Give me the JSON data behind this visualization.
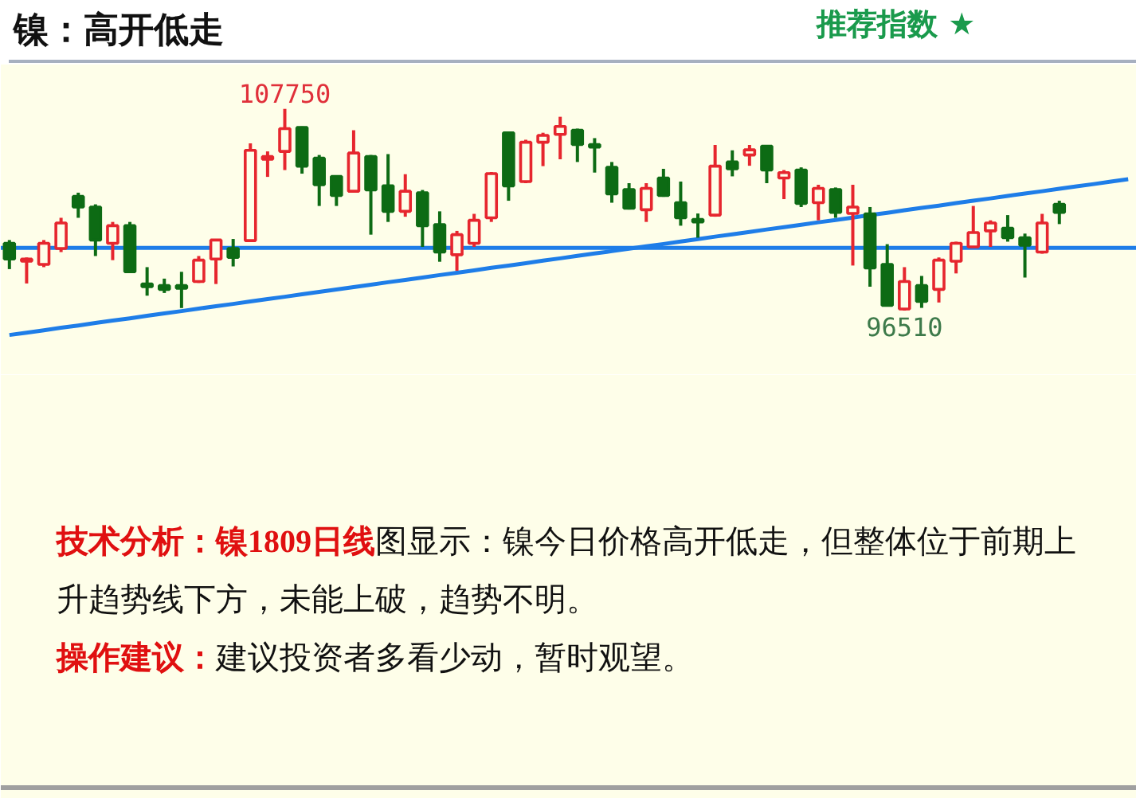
{
  "chart_data": {
    "type": "candlestick",
    "title": "镍：高开低走",
    "subtitle": "推荐指数 ★",
    "categories": [
      null,
      null,
      null,
      null,
      null,
      null,
      null,
      null,
      null,
      null,
      null,
      null,
      null,
      null,
      null,
      null,
      null,
      null,
      null,
      null,
      null,
      null,
      null,
      null,
      null,
      null,
      null,
      null,
      null,
      null,
      null,
      null,
      null,
      null,
      null,
      null,
      null,
      null,
      null,
      null,
      null,
      null,
      null,
      null,
      null,
      null,
      null,
      null,
      null,
      null,
      null,
      null,
      null,
      null,
      null,
      null,
      null,
      null,
      null,
      null,
      null,
      null,
      null,
      null,
      null,
      null
    ],
    "ohlc": [
      [
        100260,
        100440,
        98820,
        99380
      ],
      [
        99260,
        99470,
        98020,
        99380
      ],
      [
        99080,
        100440,
        98930,
        100260
      ],
      [
        99970,
        101680,
        99770,
        101390
      ],
      [
        102870,
        103080,
        101680,
        102280
      ],
      [
        102280,
        102430,
        99550,
        100440
      ],
      [
        100260,
        101450,
        99320,
        101240
      ],
      [
        101240,
        101450,
        98600,
        98670
      ],
      [
        97990,
        98930,
        97340,
        97840
      ],
      [
        97900,
        98290,
        97490,
        97690
      ],
      [
        97900,
        98670,
        96650,
        97750
      ],
      [
        98130,
        99550,
        98050,
        99320
      ],
      [
        99380,
        100500,
        97990,
        100440
      ],
      [
        99970,
        100500,
        98970,
        99470
      ],
      [
        100410,
        105830,
        100350,
        105440
      ],
      [
        104940,
        105380,
        103960,
        105090
      ],
      [
        105380,
        107750,
        104340,
        106650
      ],
      [
        106710,
        106770,
        104140,
        104560
      ],
      [
        105000,
        105180,
        102340,
        103520
      ],
      [
        103990,
        104050,
        102340,
        102920
      ],
      [
        103160,
        106560,
        103080,
        105290
      ],
      [
        105090,
        105180,
        100740,
        103230
      ],
      [
        103460,
        105230,
        101450,
        102040
      ],
      [
        102040,
        104110,
        101740,
        103160
      ],
      [
        103080,
        103230,
        100060,
        101240
      ],
      [
        101300,
        102040,
        99230,
        99770
      ],
      [
        99620,
        100950,
        98730,
        100740
      ],
      [
        100260,
        101900,
        100060,
        101540
      ],
      [
        101680,
        104230,
        101450,
        104140
      ],
      [
        106420,
        106470,
        102630,
        103460
      ],
      [
        103700,
        106030,
        103610,
        105890
      ],
      [
        105890,
        106420,
        104560,
        106270
      ],
      [
        106330,
        107310,
        104940,
        106770
      ],
      [
        106560,
        106650,
        104790,
        105760
      ],
      [
        105760,
        106120,
        104200,
        105620
      ],
      [
        104490,
        104790,
        102520,
        103010
      ],
      [
        103250,
        103610,
        102140,
        102210
      ],
      [
        102130,
        103610,
        101450,
        103320
      ],
      [
        103900,
        104410,
        102850,
        102920
      ],
      [
        102520,
        103700,
        101240,
        101680
      ],
      [
        101590,
        101920,
        100570,
        101450
      ],
      [
        101830,
        105740,
        101740,
        104560
      ],
      [
        104790,
        105440,
        103990,
        104410
      ],
      [
        105180,
        105740,
        104580,
        105470
      ],
      [
        105670,
        105740,
        103610,
        104340
      ],
      [
        103900,
        104340,
        102720,
        104200
      ],
      [
        104340,
        104490,
        102280,
        102480
      ],
      [
        102520,
        103520,
        101540,
        103320
      ],
      [
        103250,
        103370,
        101680,
        101980
      ],
      [
        101920,
        103520,
        99020,
        102280
      ],
      [
        101900,
        102280,
        97840,
        98880
      ],
      [
        99080,
        100210,
        96730,
        96800
      ],
      [
        96600,
        98930,
        96510,
        98130
      ],
      [
        97900,
        98440,
        96660,
        97020
      ],
      [
        97690,
        99470,
        96960,
        99320
      ],
      [
        99260,
        100350,
        98580,
        100260
      ],
      [
        100060,
        102340,
        100060,
        100860
      ],
      [
        100950,
        101540,
        100060,
        101390
      ],
      [
        101100,
        101830,
        100350,
        100570
      ],
      [
        100570,
        100800,
        98350,
        100150
      ],
      [
        99770,
        101900,
        99680,
        101390
      ],
      [
        102430,
        102630,
        101330,
        101980
      ],
      null,
      null,
      null,
      null
    ],
    "colors": [
      "#0d6b14",
      "#e6262e",
      "#e6262e",
      "#e6262e",
      "#0d6b14",
      "#0d6b14",
      "#e6262e",
      "#0d6b14",
      "#0d6b14",
      "#0d6b14",
      "#0d6b14",
      "#e6262e",
      "#e6262e",
      "#0d6b14",
      "#e6262e",
      "#e6262e",
      "#e6262e",
      "#0d6b14",
      "#0d6b14",
      "#0d6b14",
      "#e6262e",
      "#0d6b14",
      "#0d6b14",
      "#e6262e",
      "#0d6b14",
      "#0d6b14",
      "#e6262e",
      "#e6262e",
      "#e6262e",
      "#0d6b14",
      "#e6262e",
      "#e6262e",
      "#e6262e",
      "#0d6b14",
      "#0d6b14",
      "#0d6b14",
      "#0d6b14",
      "#e6262e",
      "#0d6b14",
      "#0d6b14",
      "#0d6b14",
      "#e6262e",
      "#0d6b14",
      "#e6262e",
      "#0d6b14",
      "#e6262e",
      "#0d6b14",
      "#e6262e",
      "#0d6b14",
      "#e6262e",
      "#0d6b14",
      "#0d6b14",
      "#e6262e",
      "#0d6b14",
      "#e6262e",
      "#e6262e",
      "#e6262e",
      "#e6262e",
      "#0d6b14",
      "#0d6b14",
      "#e6262e",
      "#0d6b14",
      null,
      null,
      null,
      null
    ],
    "series": [
      {
        "type": "line",
        "color": "#1e7de8",
        "values": [
          95150,
          95280,
          95410,
          95550,
          95680,
          95820,
          95950,
          96080,
          96220,
          96350,
          96480,
          96620,
          96750,
          96880,
          97020,
          97150,
          97280,
          97420,
          97550,
          97680,
          97820,
          97950,
          98090,
          98220,
          98350,
          98490,
          98620,
          98750,
          98890,
          99020,
          99150,
          99290,
          99420,
          99560,
          99690,
          99820,
          99960,
          100090,
          100220,
          100360,
          100490,
          100630,
          100760,
          100890,
          101030,
          101160,
          101290,
          101430,
          101560,
          101690,
          101830,
          101960,
          102100,
          102230,
          102360,
          102500,
          102630,
          102760,
          102900,
          103030,
          103160,
          103300,
          103430,
          103560,
          103700,
          103830
        ]
      }
    ],
    "ref_lines": [
      {
        "axis": "y",
        "value": 100000,
        "color": "#1e7de8"
      }
    ],
    "annotations": [
      {
        "text": "107750",
        "y": 107750
      },
      {
        "text": "96510",
        "y": 96510
      },
      "技术分析：镍1809日线",
      "图显示：镍今日价格高开低走，但整体位于前期上升趋势线下方，未能上破，趋势不明。",
      "操作建议：",
      "建议投资者多看少动，暂时观望。"
    ],
    "tick_labels": false
  }
}
